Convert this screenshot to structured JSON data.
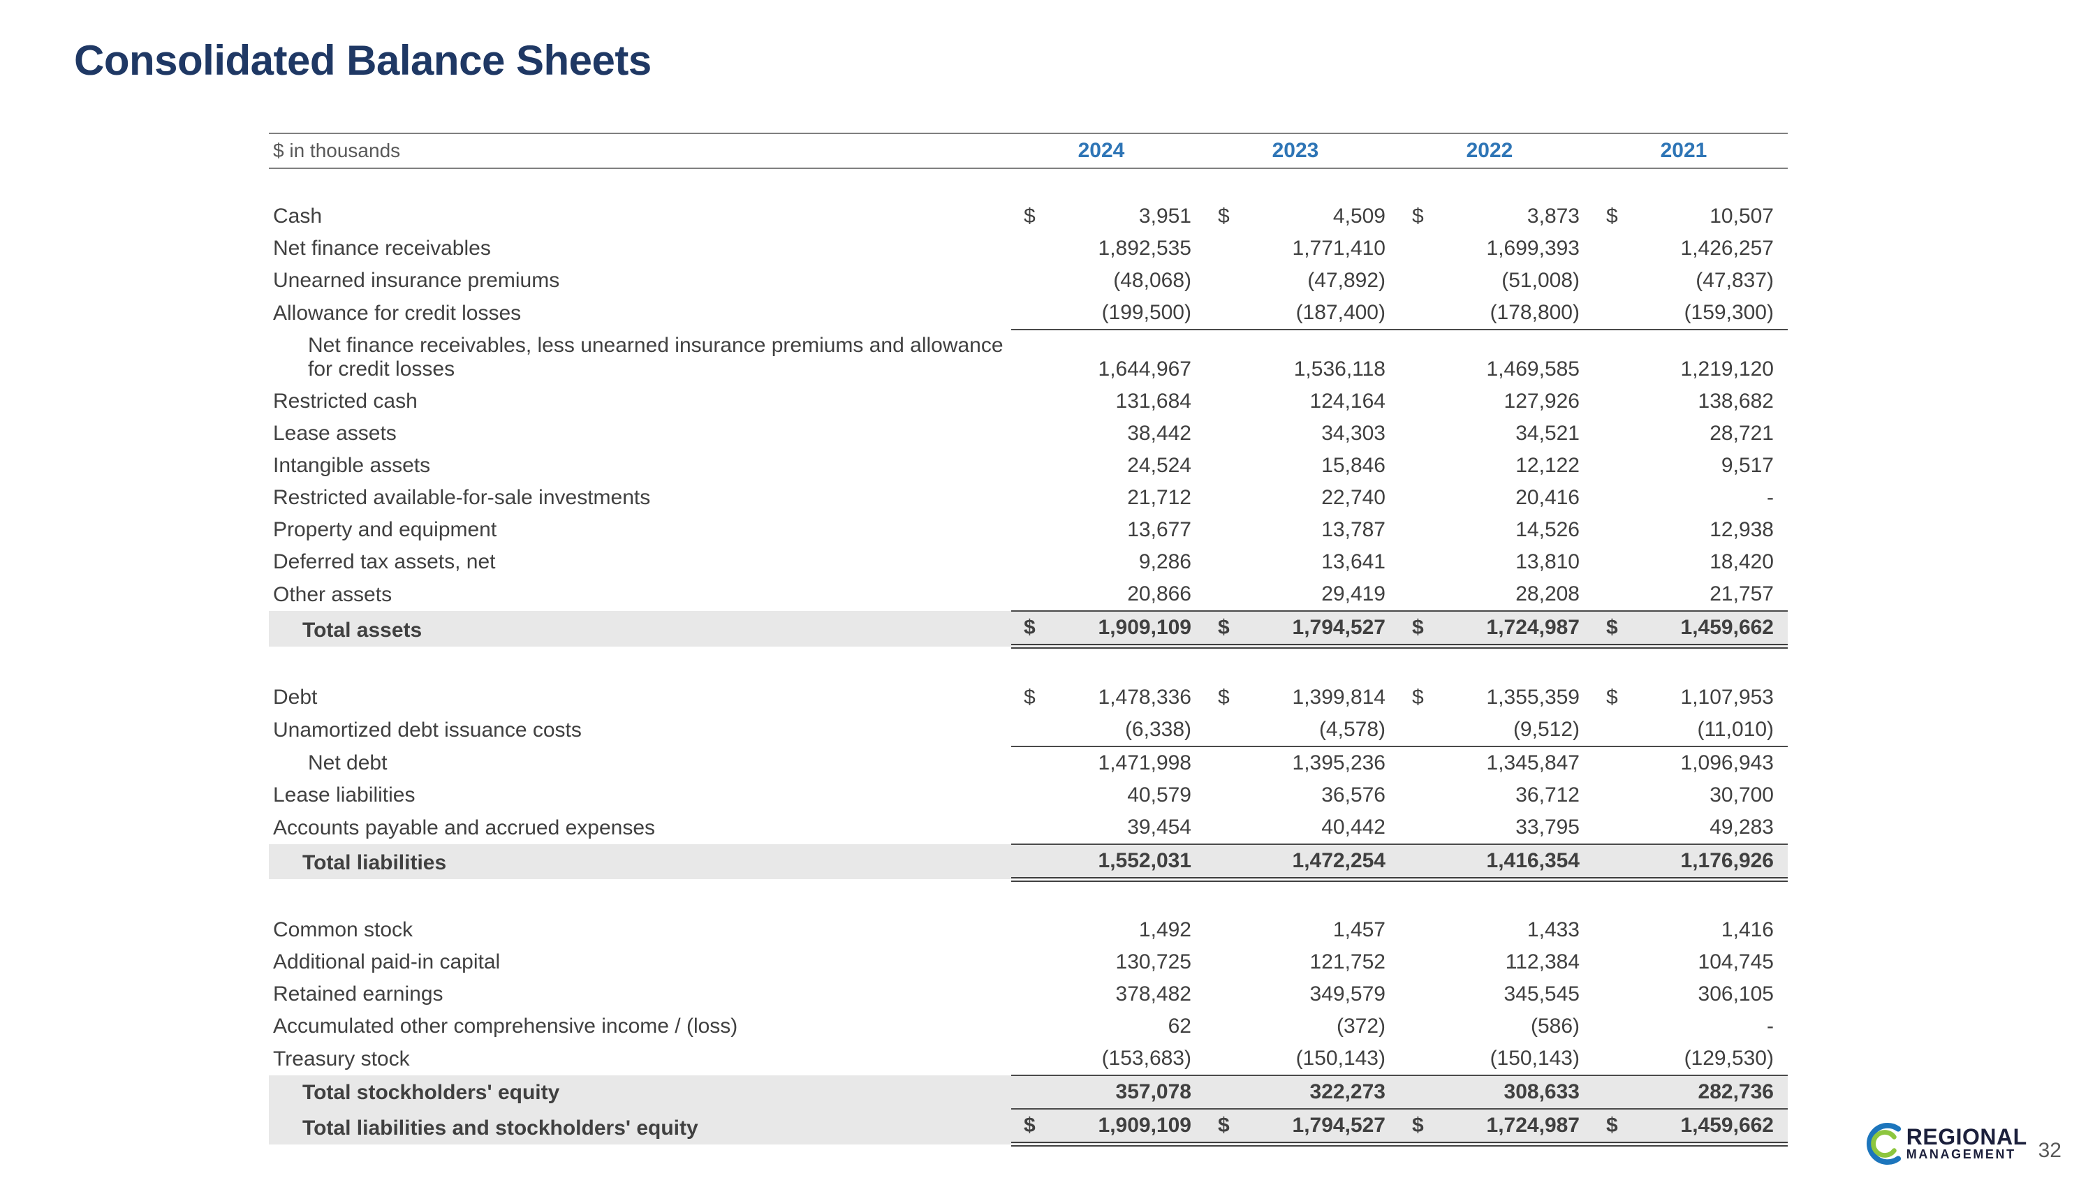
{
  "slide": {
    "title": "Consolidated Balance Sheets",
    "page_number": "32",
    "logo": {
      "line1": "REGIONAL",
      "line2": "MANAGEMENT"
    }
  },
  "colors": {
    "title": "#1F3864",
    "year_header": "#2E75B6",
    "body_text": "#404040",
    "total_row_bg": "#E8E8E8",
    "header_rule": "#808080",
    "logo_blue": "#1C75BC",
    "logo_green": "#8DC63F"
  },
  "table": {
    "unit_label": "$ in thousands",
    "dollar_sign": "$",
    "years": [
      "2024",
      "2023",
      "2022",
      "2021"
    ],
    "sections": [
      {
        "name": "assets",
        "rows": [
          {
            "label": "Cash",
            "dollar": true,
            "values": [
              "3,951",
              "4,509",
              "3,873",
              "10,507"
            ]
          },
          {
            "label": "Net finance receivables",
            "values": [
              "1,892,535",
              "1,771,410",
              "1,699,393",
              "1,426,257"
            ]
          },
          {
            "label": "Unearned insurance premiums",
            "values": [
              "(48,068)",
              "(47,892)",
              "(51,008)",
              "(47,837)"
            ]
          },
          {
            "label": "Allowance for credit losses",
            "underline": true,
            "values": [
              "(199,500)",
              "(187,400)",
              "(178,800)",
              "(159,300)"
            ]
          },
          {
            "label": "Net finance receivables, less unearned insurance premiums and allowance for credit losses",
            "indent": true,
            "values": [
              "1,644,967",
              "1,536,118",
              "1,469,585",
              "1,219,120"
            ]
          },
          {
            "label": "Restricted cash",
            "values": [
              "131,684",
              "124,164",
              "127,926",
              "138,682"
            ]
          },
          {
            "label": "Lease assets",
            "values": [
              "38,442",
              "34,303",
              "34,521",
              "28,721"
            ]
          },
          {
            "label": "Intangible assets",
            "values": [
              "24,524",
              "15,846",
              "12,122",
              "9,517"
            ]
          },
          {
            "label": "Restricted available-for-sale investments",
            "values": [
              "21,712",
              "22,740",
              "20,416",
              "-"
            ]
          },
          {
            "label": "Property and equipment",
            "values": [
              "13,677",
              "13,787",
              "14,526",
              "12,938"
            ]
          },
          {
            "label": "Deferred tax assets, net",
            "values": [
              "9,286",
              "13,641",
              "13,810",
              "18,420"
            ]
          },
          {
            "label": "Other assets",
            "underline": true,
            "values": [
              "20,866",
              "29,419",
              "28,208",
              "21,757"
            ]
          },
          {
            "label": "Total assets",
            "total": true,
            "dollar": true,
            "double_underline": true,
            "values": [
              "1,909,109",
              "1,794,527",
              "1,724,987",
              "1,459,662"
            ]
          }
        ]
      },
      {
        "name": "liabilities",
        "rows": [
          {
            "label": "Debt",
            "dollar": true,
            "values": [
              "1,478,336",
              "1,399,814",
              "1,355,359",
              "1,107,953"
            ]
          },
          {
            "label": "Unamortized debt issuance costs",
            "underline": true,
            "values": [
              "(6,338)",
              "(4,578)",
              "(9,512)",
              "(11,010)"
            ]
          },
          {
            "label": "Net debt",
            "indent": true,
            "values": [
              "1,471,998",
              "1,395,236",
              "1,345,847",
              "1,096,943"
            ]
          },
          {
            "label": "Lease liabilities",
            "values": [
              "40,579",
              "36,576",
              "36,712",
              "30,700"
            ]
          },
          {
            "label": "Accounts payable and accrued expenses",
            "underline": true,
            "values": [
              "39,454",
              "40,442",
              "33,795",
              "49,283"
            ]
          },
          {
            "label": "Total liabilities",
            "total": true,
            "double_underline": true,
            "values": [
              "1,552,031",
              "1,472,254",
              "1,416,354",
              "1,176,926"
            ]
          }
        ]
      },
      {
        "name": "stockholders-equity",
        "rows": [
          {
            "label": "Common stock",
            "values": [
              "1,492",
              "1,457",
              "1,433",
              "1,416"
            ]
          },
          {
            "label": "Additional paid-in capital",
            "values": [
              "130,725",
              "121,752",
              "112,384",
              "104,745"
            ]
          },
          {
            "label": "Retained earnings",
            "values": [
              "378,482",
              "349,579",
              "345,545",
              "306,105"
            ]
          },
          {
            "label": "Accumulated other comprehensive income / (loss)",
            "values": [
              "62",
              "(372)",
              "(586)",
              "-"
            ]
          },
          {
            "label": "Treasury stock",
            "underline": true,
            "values": [
              "(153,683)",
              "(150,143)",
              "(150,143)",
              "(129,530)"
            ]
          },
          {
            "label": "Total stockholders' equity",
            "total": true,
            "underline": true,
            "values": [
              "357,078",
              "322,273",
              "308,633",
              "282,736"
            ]
          },
          {
            "label": "Total liabilities and stockholders' equity",
            "total": true,
            "dollar": true,
            "double_underline": true,
            "values": [
              "1,909,109",
              "1,794,527",
              "1,724,987",
              "1,459,662"
            ]
          }
        ]
      }
    ]
  }
}
